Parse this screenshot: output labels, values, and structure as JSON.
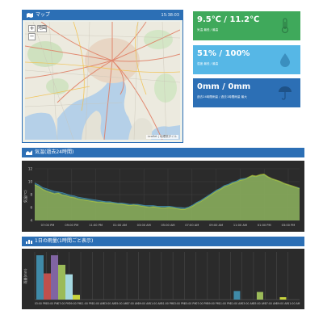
{
  "map_panel": {
    "title": "マップ",
    "timestamp": "15:38:03",
    "zoom_in": "+",
    "zoom_out": "−",
    "layer_button": "地図",
    "attribution": "Leaflet | 地理院タイル"
  },
  "cards": [
    {
      "value": "9.5℃ / 11.2℃",
      "label": "気温 最低 / 最高",
      "icon": "thermometer-icon",
      "color": "#3fa95b"
    },
    {
      "value": "51% / 100%",
      "label": "湿度 最低 / 最高",
      "icon": "water-drop-icon",
      "color": "#56b7e6"
    },
    {
      "value": "0mm / 0mm",
      "label": "過去24時間雨量 / 過去1時間雨量 最大",
      "icon": "umbrella-icon",
      "color": "#2c6fb5"
    }
  ],
  "temp_panel": {
    "title": "気温(過去24時間)",
    "icon": "area-chart-icon"
  },
  "rain_panel": {
    "title": "1日の雨量(1時間ごと表示)",
    "icon": "bar-chart-icon"
  },
  "chart_data": [
    {
      "type": "area",
      "ylabel": "気温(℃)",
      "ylim": [
        4,
        12
      ],
      "yticks": [
        "12",
        "10",
        "8",
        "6",
        "4"
      ],
      "x_labels": [
        "07:00 PM",
        "09:00 PM",
        "11:00 PM",
        "01:00 AM",
        "03:00 AM",
        "05:00 AM",
        "07:00 AM",
        "09:00 AM",
        "11:00 AM",
        "01:00 PM",
        "03:00 PM"
      ],
      "series": [
        {
          "color": "#8a9a3a",
          "values": [
            9.6,
            9.3,
            8.9,
            8.6,
            8.4,
            8.2,
            8.3,
            8.0,
            7.9,
            7.7,
            7.6,
            7.4,
            7.3,
            7.2,
            7.1,
            7.0,
            6.9,
            6.9,
            6.8,
            6.8,
            6.7,
            6.6,
            6.6,
            6.5,
            6.4,
            6.5,
            6.4,
            6.3,
            6.2,
            6.1,
            6.2,
            6.1,
            6.0,
            6.0,
            6.1,
            6.0,
            5.9,
            5.8,
            5.8,
            6.0,
            6.3,
            6.7,
            7.0,
            7.4,
            7.8,
            8.2,
            8.6,
            8.9,
            9.3,
            9.5,
            9.8,
            10.0,
            10.3,
            10.4,
            10.7,
            11.0,
            10.9,
            11.1,
            11.2,
            10.8,
            10.5,
            10.3,
            10.1,
            9.8,
            9.6,
            9.4,
            9.2,
            9.0
          ]
        },
        {
          "color": "#3f8aa8",
          "values": [
            9.8,
            9.5,
            9.1,
            8.9,
            8.7,
            8.5,
            8.4,
            8.3,
            8.1,
            7.9,
            7.8,
            7.6,
            7.5,
            7.4,
            7.3,
            7.2,
            7.1,
            7.0,
            6.9,
            6.9,
            6.8,
            6.7,
            6.7,
            6.6,
            6.5,
            6.5,
            6.5,
            6.4,
            6.3,
            6.3,
            6.3,
            6.2,
            6.2,
            6.2,
            6.2,
            6.1,
            6.0,
            6.0,
            5.9,
            6.1,
            6.4,
            6.8,
            7.1,
            7.5,
            7.9,
            8.3,
            8.7,
            9.0,
            9.4,
            9.6,
            9.9,
            10.1,
            10.4,
            10.5,
            10.6,
            10.8,
            10.7,
            10.9,
            11.0,
            10.7,
            10.4,
            10.2,
            10.0,
            9.7,
            9.5,
            9.3,
            9.1,
            9.0
          ]
        },
        {
          "color": "#a8c040",
          "values": [
            9.5,
            9.2,
            8.8,
            8.5,
            8.3,
            8.1,
            8.2,
            7.9,
            7.8,
            7.6,
            7.5,
            7.3,
            7.2,
            7.1,
            7.0,
            6.9,
            6.8,
            6.8,
            6.7,
            6.7,
            6.6,
            6.5,
            6.5,
            6.4,
            6.3,
            6.4,
            6.3,
            6.2,
            6.1,
            6.0,
            6.1,
            6.0,
            5.9,
            5.9,
            6.0,
            5.9,
            5.8,
            5.7,
            5.7,
            5.9,
            6.2,
            6.6,
            6.9,
            7.3,
            7.7,
            8.1,
            8.5,
            8.8,
            9.2,
            9.4,
            9.7,
            9.9,
            10.2,
            10.3,
            10.6,
            10.9,
            10.8,
            11.0,
            11.1,
            10.7,
            10.4,
            10.2,
            10.0,
            9.7,
            9.5,
            9.3,
            9.1,
            8.9
          ]
        }
      ]
    },
    {
      "type": "bar",
      "ylabel": "雨量(mm)",
      "ylim": [
        0,
        1
      ],
      "x_labels": [
        "03:00 PM",
        "05:00 PM",
        "07:00 PM",
        "09:00 PM",
        "11:00 PM",
        "01:00 AM",
        "03:00 AM",
        "05:00 AM",
        "07:00 AM",
        "09:00 AM",
        "11:00 AM",
        "01:00 PM",
        "03:00 PM",
        "05:00 PM",
        "07:00 PM",
        "09:00 PM",
        "11:00 PM",
        "01:00 AM",
        "03:00 AM",
        "05:00 AM",
        "07:00 AM",
        "09:00 AM",
        "11:00 AM"
      ],
      "groups": [
        {
          "index": 0,
          "values": [
            0.93,
            0.55,
            0.93,
            0.73,
            0.53,
            0.1
          ],
          "colors": [
            "#3f8aa8",
            "#c0504d",
            "#8064a2",
            "#9bbb59",
            "#a5d8e0",
            "#c8d43c"
          ]
        },
        {
          "index": 17,
          "values": [
            0.18,
            0.0,
            0.0,
            0.0,
            0.0,
            0.0
          ],
          "colors": [
            "#3f8aa8",
            "#c0504d",
            "#8064a2",
            "#9bbb59",
            "#a5d8e0",
            "#c8d43c"
          ]
        },
        {
          "index": 19,
          "values": [
            0.0,
            0.0,
            0.0,
            0.16,
            0.0,
            0.0
          ],
          "colors": [
            "#3f8aa8",
            "#c0504d",
            "#8064a2",
            "#9bbb59",
            "#a5d8e0",
            "#c8d43c"
          ]
        },
        {
          "index": 21,
          "values": [
            0.0,
            0.0,
            0.0,
            0.0,
            0.0,
            0.05
          ],
          "colors": [
            "#3f8aa8",
            "#c0504d",
            "#8064a2",
            "#9bbb59",
            "#a5d8e0",
            "#c8d43c"
          ]
        }
      ]
    }
  ]
}
